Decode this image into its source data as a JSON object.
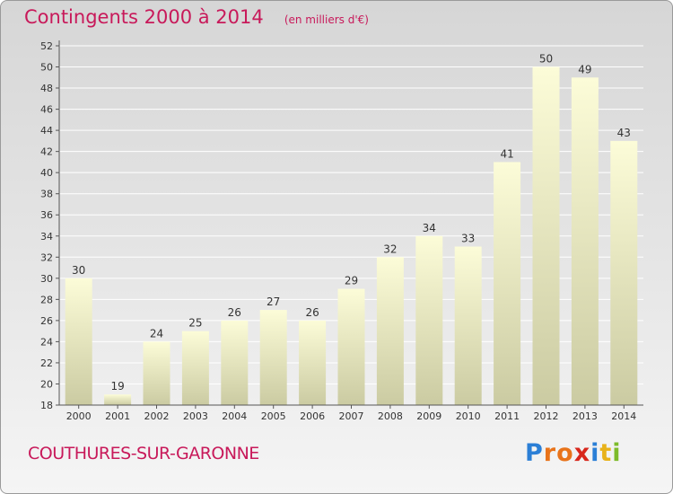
{
  "header": {
    "title": "Contingents 2000 à 2014",
    "subtitle": "(en milliers d'€)"
  },
  "footer": {
    "commune": "COUTHURES-SUR-GARONNE",
    "logo": "Proxiti",
    "logo_colors": [
      "#2b7fd6",
      "#e8731a",
      "#e8731a",
      "#d8271c",
      "#2b7fd6",
      "#e8b21a",
      "#7dbb2a"
    ]
  },
  "chart_data": {
    "type": "bar",
    "categories": [
      "2000",
      "2001",
      "2002",
      "2003",
      "2004",
      "2005",
      "2006",
      "2007",
      "2008",
      "2009",
      "2010",
      "2011",
      "2012",
      "2013",
      "2014"
    ],
    "values": [
      30,
      19,
      24,
      25,
      26,
      27,
      26,
      29,
      32,
      34,
      33,
      41,
      50,
      49,
      43
    ],
    "ylim": [
      18,
      52
    ],
    "yticks": [
      18,
      20,
      22,
      24,
      26,
      28,
      30,
      32,
      34,
      36,
      38,
      40,
      42,
      44,
      46,
      48,
      50,
      52
    ],
    "grid": true,
    "colors": {
      "bar_top": "#fcfcd8",
      "bar_bottom": "#cbcba2",
      "grid": "#ffffff",
      "axis": "#555555",
      "text": "#333333"
    }
  }
}
